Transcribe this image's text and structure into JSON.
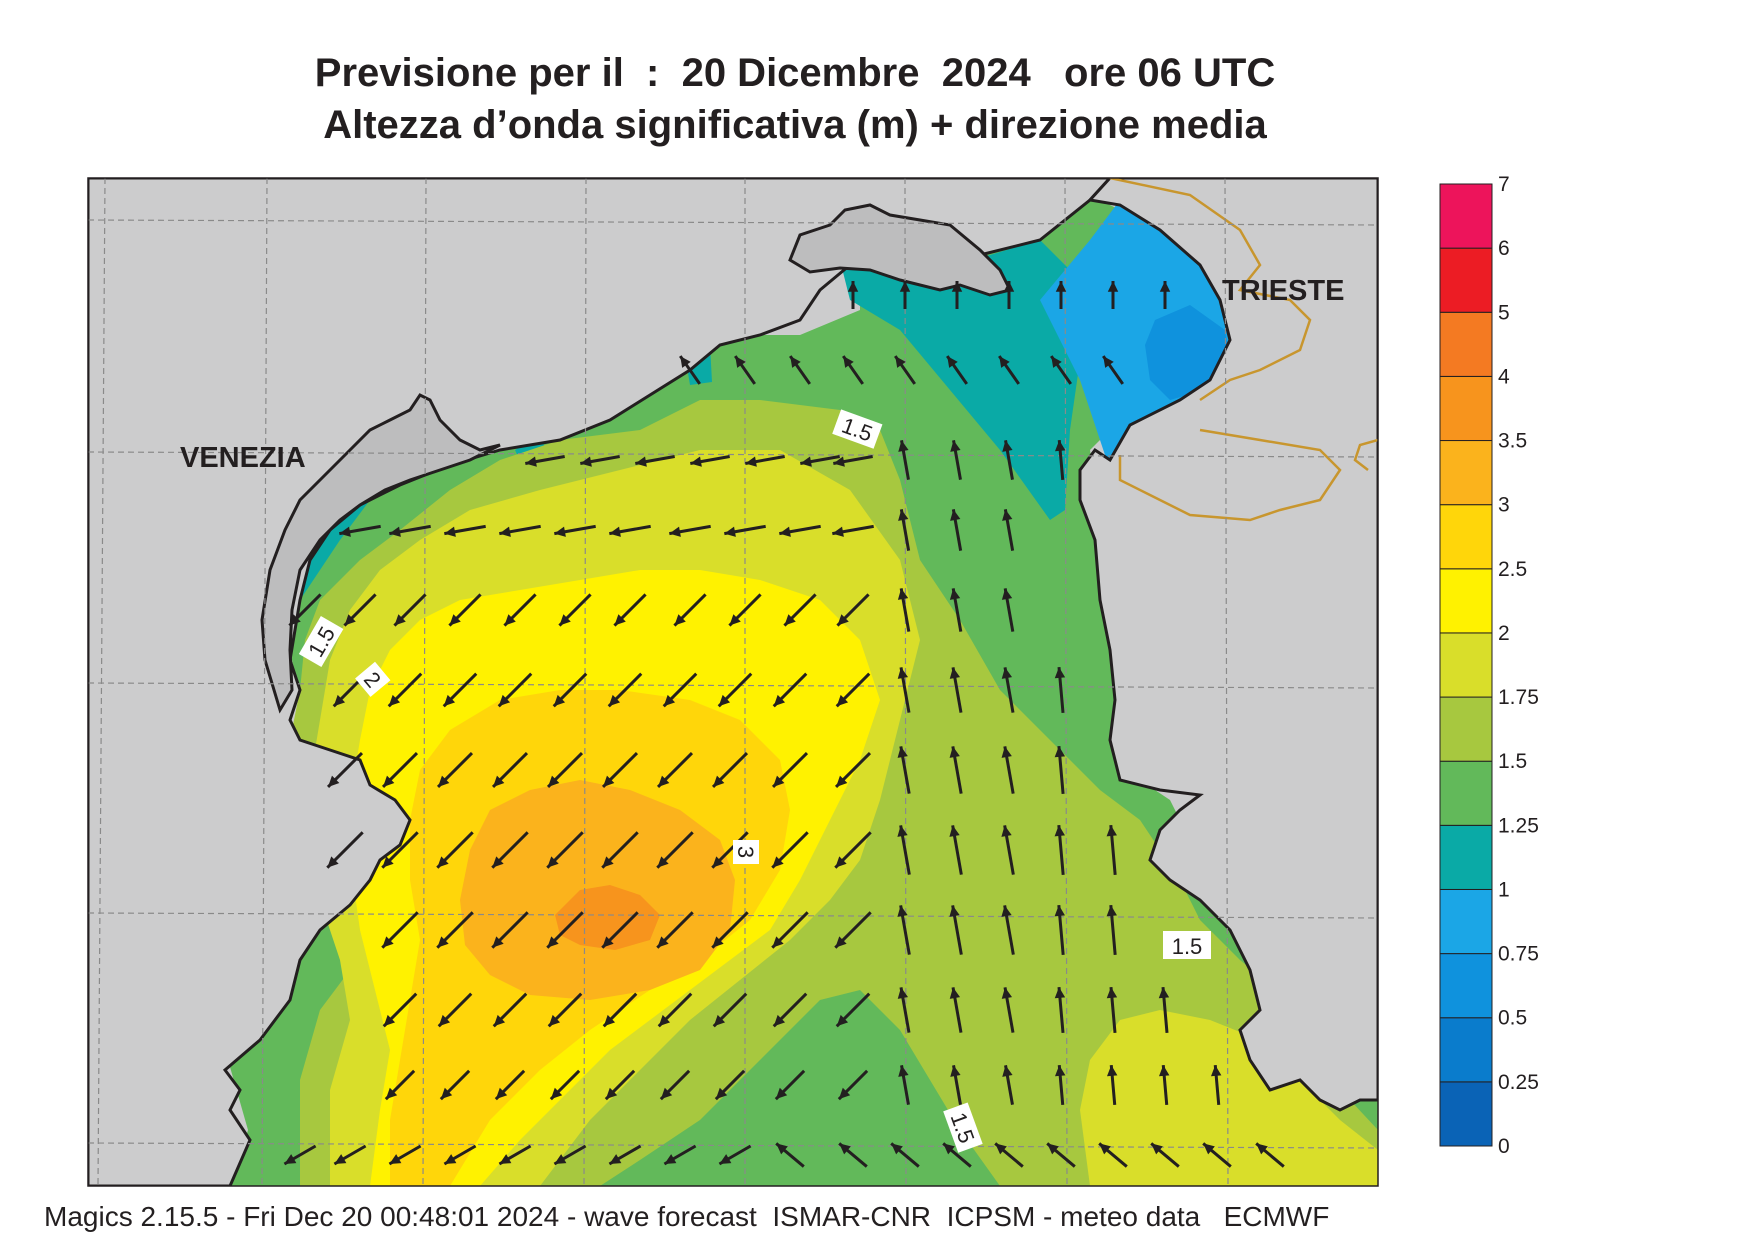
{
  "title": {
    "line1": "Previsione per il  :  20 Dicembre  2024   ore 06 UTC",
    "line2": "Altezza d’onda significativa (m) + direzione media"
  },
  "footer": "Magics 2.15.5 - Fri Dec 20 00:48:01 2024 - wave forecast  ISMAR-CNR  ICPSM - meteo data   ECMWF",
  "cities": [
    {
      "name": "VENEZIA"
    },
    {
      "name": "TRIESTE"
    }
  ],
  "contour_labels": [
    "1.5",
    "1.5",
    "2",
    "3",
    "1.5",
    "1.5"
  ],
  "legend": {
    "levels": [
      "0",
      "0.25",
      "0.5",
      "0.75",
      "1",
      "1.25",
      "1.5",
      "1.75",
      "2",
      "2.5",
      "3",
      "3.5",
      "4",
      "5",
      "6",
      "7"
    ],
    "colors": [
      "#0a63b6",
      "#0a7ccc",
      "#0f92dd",
      "#1ba6e6",
      "#0aaaa6",
      "#62b95a",
      "#a7c83f",
      "#d9de2a",
      "#fff200",
      "#ffd60a",
      "#fbb31c",
      "#f7941d",
      "#f47a22",
      "#ec1c24",
      "#ed145b"
    ]
  },
  "colors": {
    "land": "#cccccd",
    "coastline": "#231f20",
    "border": "#c8962e",
    "arrow": "#231f20"
  }
}
